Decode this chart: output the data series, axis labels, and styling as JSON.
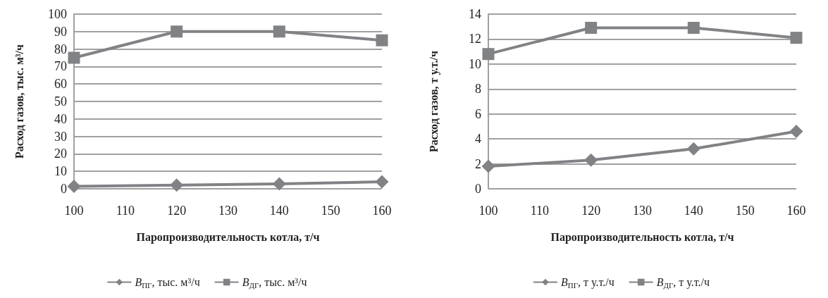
{
  "chart_data": [
    {
      "type": "line",
      "xlabel": "Паропроизводительность котла, т/ч",
      "ylabel": "Расход газов, тыс. м³/ч",
      "x": [
        100,
        120,
        140,
        160
      ],
      "xlim": [
        100,
        160
      ],
      "xticks": [
        100,
        110,
        120,
        130,
        140,
        150,
        160
      ],
      "ylim": [
        0,
        100
      ],
      "yticks": [
        0,
        10,
        20,
        30,
        40,
        50,
        60,
        70,
        80,
        90,
        100
      ],
      "grid": "y",
      "legend": "bottom",
      "series": [
        {
          "name": "B$_{ПГ}$, тыс. м³/ч",
          "color": "#808285",
          "marker": "diamond",
          "values": [
            1.4,
            2.1,
            2.8,
            4.0
          ]
        },
        {
          "name": "B$_{ДГ}$, тыс. м³/ч",
          "color": "#808285",
          "marker": "square",
          "values": [
            75,
            90,
            90,
            85
          ]
        }
      ]
    },
    {
      "type": "line",
      "xlabel": "Паропроизводительность котла, т/ч",
      "ylabel": "Расход газов, т у.т./ч",
      "x": [
        100,
        120,
        140,
        160
      ],
      "xlim": [
        100,
        160
      ],
      "xticks": [
        100,
        110,
        120,
        130,
        140,
        150,
        160
      ],
      "ylim": [
        0,
        14
      ],
      "yticks": [
        0,
        2,
        4,
        6,
        8,
        10,
        12,
        14
      ],
      "grid": "y",
      "legend": "bottom",
      "series": [
        {
          "name": "B$_{ПГ}$, т у.т./ч",
          "color": "#808285",
          "marker": "diamond",
          "values": [
            1.8,
            2.3,
            3.2,
            4.6
          ]
        },
        {
          "name": "B$_{ДГ}$, т у.т./ч",
          "color": "#808285",
          "marker": "square",
          "values": [
            10.8,
            12.9,
            12.9,
            12.1
          ]
        }
      ]
    }
  ]
}
